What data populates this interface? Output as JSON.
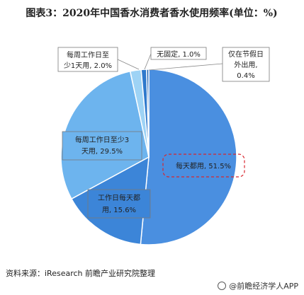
{
  "title": "图表3：2020年中国香水消费者香水使用频率(单位：%)",
  "source": "资料来源：iResearch 前瞻产业研究院整理",
  "footer": "@前瞻经济学人APP",
  "chart_data": {
    "type": "pie",
    "title": "图表3：2020年中国香水消费者香水使用频率(单位：%)",
    "slices": [
      {
        "label": "每天都用",
        "value": 51.5,
        "color": "#4a8fe0",
        "text": "每天都用, 51.5%"
      },
      {
        "label": "工作日每天都用",
        "value": 15.6,
        "color": "#3c85d8",
        "text": [
          "工作日每天都",
          "用, 15.6%"
        ]
      },
      {
        "label": "每周工作日至少3天用",
        "value": 29.5,
        "color": "#6db4ee",
        "text": [
          "每周工作日至少3",
          "天用, 29.5%"
        ]
      },
      {
        "label": "每周工作日至少1天用",
        "value": 2.0,
        "color": "#9ed3f5",
        "text": [
          "每周工作日至",
          "少1天用, 2.0%"
        ]
      },
      {
        "label": "无固定",
        "value": 1.0,
        "color": "#2f79cc",
        "text": [
          "无固定, 1.0%"
        ]
      },
      {
        "label": "仅在节假日外出用",
        "value": 0.4,
        "color": "#1a5fb0",
        "text": [
          "仅在节假日",
          "外出用,",
          "0.4%"
        ]
      }
    ]
  }
}
